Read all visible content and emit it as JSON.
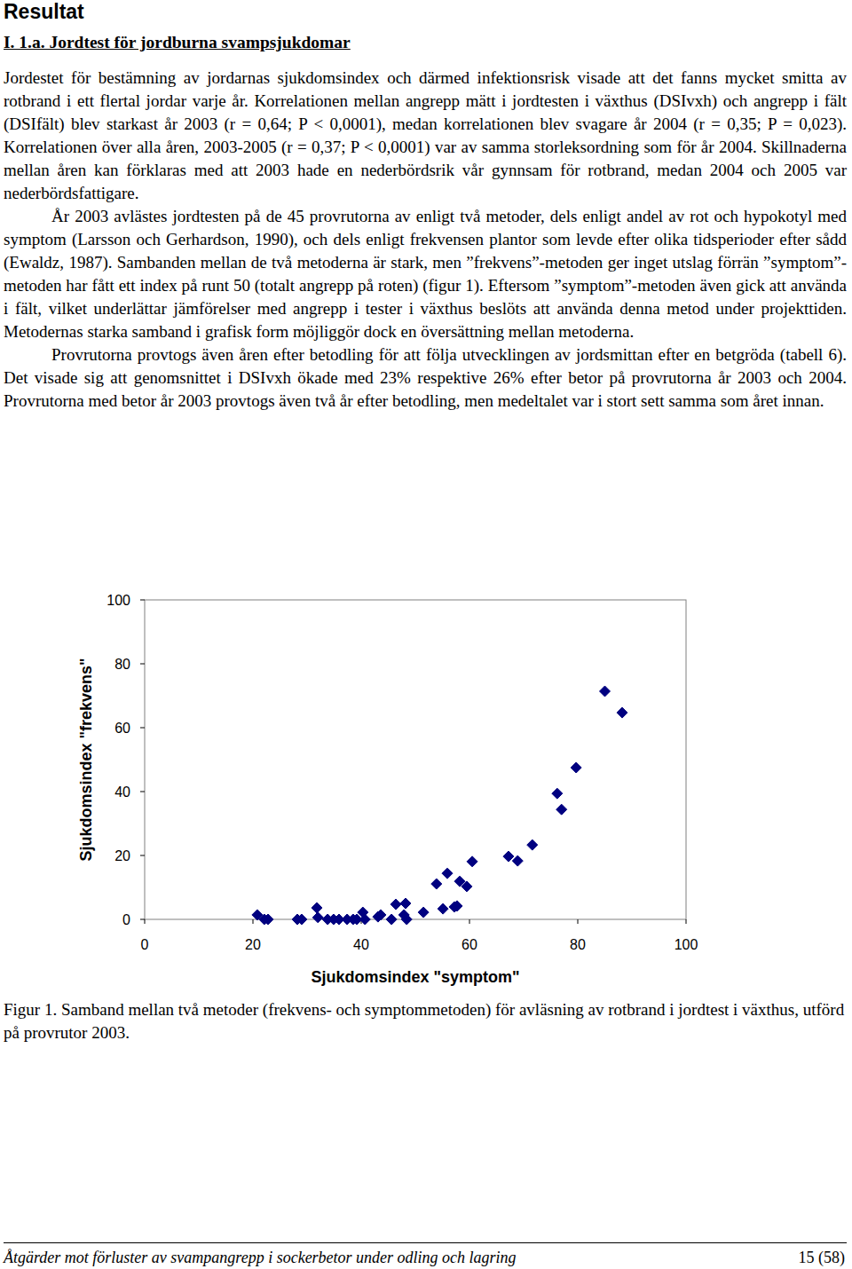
{
  "page": {
    "title": "Resultat",
    "section": "I. 1.a. Jordtest för jordburna svampsjukdomar",
    "paragraphs": [
      "Jordestet för bestämning av jordarnas sjukdomsindex och därmed infektionsrisk visade att det fanns mycket smitta av rotbrand i ett flertal jordar varje år. Korrelationen mellan angrepp mätt i jordtesten i växthus (DSIvxh) och angrepp i fält (DSIfält) blev starkast år 2003 (r = 0,64; P < 0,0001), medan korrelationen blev svagare år 2004 (r = 0,35; P = 0,023). Korrelationen över alla åren, 2003-2005 (r = 0,37; P < 0,0001) var av samma storleksordning som för år 2004. Skillnaderna mellan åren kan förklaras med att 2003 hade en nederbördsrik vår gynnsam för rotbrand, medan 2004 och 2005 var nederbördsfattigare.",
      "År 2003 avlästes jordtesten på de 45 provrutorna av enligt två metoder, dels enligt andel av rot och hypokotyl med symptom (Larsson och Gerhardson, 1990), och dels enligt frekvensen plantor som levde efter olika tidsperioder efter sådd (Ewaldz, 1987). Sambanden mellan de två metoderna är stark, men ”frekvens”-metoden ger inget utslag förrän ”symptom”-metoden har fått ett index på runt 50 (totalt angrepp på roten) (figur 1). Eftersom ”symptom”-metoden även gick att använda i fält, vilket underlättar jämförelser med angrepp i tester i växthus beslöts att använda denna metod under projekttiden. Metodernas starka samband i grafisk form möjliggör dock en översättning mellan metoderna.",
      "Provrutorna provtogs även åren efter betodling för att följa utvecklingen av jordsmittan efter en betgröda (tabell 6). Det visade sig att genomsnittet i DSIvxh ökade med 23% respektive 26% efter betor på provrutorna år 2003 och 2004. Provrutorna med betor år 2003 provtogs även två år efter betodling, men medeltalet var i stort sett samma som året innan."
    ],
    "caption": "Figur 1. Samband mellan två metoder (frekvens- och symptommetoden) för avläsning av rotbrand i jordtest i växthus, utförd på provrutor 2003.",
    "footer": {
      "left": "Åtgärder mot förluster av svampangrepp i sockerbetor under odling och lagring",
      "right": "15 (58)"
    }
  },
  "chart_data": {
    "type": "scatter",
    "x_label": "Sjukdomsindex \"symptom\"",
    "y_label": "Sjukdomsindex \"frekvens\"",
    "x": [
      20.8,
      22.1,
      22.8,
      28.2,
      29.0,
      31.8,
      32.0,
      33.8,
      34.9,
      35.9,
      37.4,
      38.5,
      39.2,
      40.3,
      40.7,
      43.1,
      43.6,
      45.6,
      46.4,
      47.9,
      48.2,
      48.4,
      51.5,
      53.9,
      55.1,
      55.9,
      57.2,
      57.7,
      58.2,
      59.5,
      60.5,
      67.2,
      68.9,
      71.6,
      76.2,
      77.0,
      79.7,
      85.0,
      88.2
    ],
    "values": [
      1.4,
      0,
      0,
      0,
      0,
      3.6,
      0.6,
      0,
      0,
      0,
      0,
      0,
      0,
      2.2,
      0,
      0.8,
      1.4,
      0,
      4.7,
      1.4,
      5.0,
      0,
      2.2,
      11.1,
      3.3,
      14.4,
      3.9,
      4.2,
      11.9,
      10.3,
      18.1,
      19.7,
      18.3,
      23.3,
      39.4,
      34.4,
      47.5,
      71.4,
      64.7
    ],
    "color": "#000080",
    "marker": "diamond",
    "xlim": [
      0,
      100
    ],
    "ylim": [
      0,
      100
    ],
    "xticks": [
      0,
      20,
      40,
      60,
      80,
      100
    ],
    "yticks": [
      0,
      20,
      40,
      60,
      80,
      100
    ],
    "grid": false
  }
}
